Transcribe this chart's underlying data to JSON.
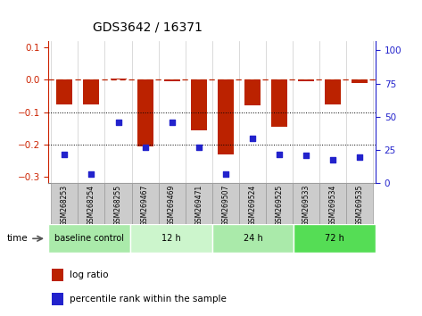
{
  "title": "GDS3642 / 16371",
  "samples": [
    "GSM268253",
    "GSM268254",
    "GSM268255",
    "GSM269467",
    "GSM269469",
    "GSM269471",
    "GSM269507",
    "GSM269524",
    "GSM269525",
    "GSM269533",
    "GSM269534",
    "GSM269535"
  ],
  "log_ratio": [
    -0.075,
    -0.075,
    0.005,
    -0.205,
    -0.005,
    -0.155,
    -0.23,
    -0.08,
    -0.145,
    -0.005,
    -0.075,
    -0.01
  ],
  "percentile_rank": [
    22,
    7,
    46,
    27,
    46,
    27,
    7,
    34,
    22,
    21,
    18,
    20
  ],
  "groups": [
    {
      "label": "baseline control",
      "start": 0,
      "end": 3,
      "color": "#aaeaaa"
    },
    {
      "label": "12 h",
      "start": 3,
      "end": 6,
      "color": "#ccf5cc"
    },
    {
      "label": "24 h",
      "start": 6,
      "end": 9,
      "color": "#aaeaaa"
    },
    {
      "label": "72 h",
      "start": 9,
      "end": 12,
      "color": "#55dd55"
    }
  ],
  "bar_color": "#bb2200",
  "dot_color": "#2222cc",
  "ylim_left": [
    -0.32,
    0.12
  ],
  "ylim_right": [
    0,
    107
  ],
  "yticks_left": [
    -0.3,
    -0.2,
    -0.1,
    0,
    0.1
  ],
  "yticks_right": [
    0,
    25,
    50,
    75,
    100
  ],
  "hline_y": 0,
  "dotted_lines": [
    -0.1,
    -0.2
  ],
  "background_color": "#ffffff",
  "tick_color_left": "#cc2200",
  "tick_color_right": "#2222cc",
  "sample_box_color": "#cccccc",
  "sample_box_edge": "#999999"
}
